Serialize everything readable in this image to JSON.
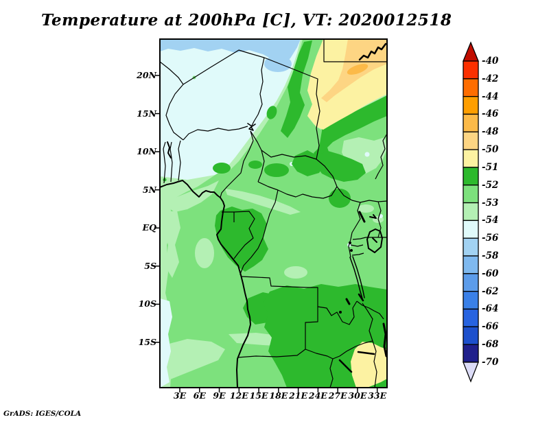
{
  "title": "Temperature at 200hPa [C], VT: 2020012518",
  "attribution": "GrADS: IGES/COLA",
  "map": {
    "lat_labels": [
      "20N",
      "15N",
      "10N",
      "5N",
      "EQ",
      "5S",
      "10S",
      "15S"
    ],
    "lon_labels": [
      "3E",
      "6E",
      "9E",
      "12E",
      "15E",
      "18E",
      "21E",
      "24E",
      "27E",
      "30E",
      "33E"
    ]
  },
  "colorbar": {
    "labels": [
      "-40",
      "-42",
      "-44",
      "-46",
      "-48",
      "-50",
      "-51",
      "-52",
      "-53",
      "-54",
      "-56",
      "-58",
      "-60",
      "-62",
      "-64",
      "-66",
      "-68",
      "-70"
    ],
    "segment_colors": [
      "#fb3000",
      "#fe6d00",
      "#fe9e00",
      "#fcba48",
      "#fdd583",
      "#fcf2a2",
      "#2db92d",
      "#7de17d",
      "#b4f0b4",
      "#e0fafa",
      "#a2d2f2",
      "#7fb9ef",
      "#5c9cea",
      "#3a80e8",
      "#2763e0",
      "#1d50cc",
      "#20208c"
    ],
    "up_arrow_color": "#c00d00",
    "down_arrow_color": "#dcdcf7"
  },
  "palette": {
    "cyan_pale": "#e0fafa",
    "blue_light": "#a2d2f2",
    "green_pale": "#b4f0b4",
    "green_light": "#7de17d",
    "green_mid": "#2db92d",
    "yellow_pale": "#fcf2a2",
    "amber_light": "#fdd583",
    "amber": "#fcba48",
    "black": "#000000"
  },
  "chart_data": {
    "type": "heatmap",
    "title": "Temperature at 200hPa [C], VT: 2020012518",
    "x_tick_labels": [
      "3E",
      "6E",
      "9E",
      "12E",
      "15E",
      "18E",
      "21E",
      "24E",
      "27E",
      "30E",
      "33E"
    ],
    "y_tick_labels": [
      "20N",
      "15N",
      "10N",
      "5N",
      "EQ",
      "5S",
      "10S",
      "15S"
    ],
    "legend_levels": [
      -40,
      -42,
      -44,
      -46,
      -48,
      -50,
      -51,
      -52,
      -53,
      -54,
      -56,
      -58,
      -60,
      -62,
      -64,
      -66,
      -68,
      -70
    ],
    "legend_colors": [
      "#fb3000",
      "#fe6d00",
      "#fe9e00",
      "#fcba48",
      "#fdd583",
      "#fcf2a2",
      "#2db92d",
      "#7de17d",
      "#b4f0b4",
      "#e0fafa",
      "#a2d2f2",
      "#7fb9ef",
      "#5c9cea",
      "#3a80e8",
      "#2763e0",
      "#1d50cc",
      "#20208c"
    ],
    "legend_position": "right",
    "notes": "Filled temperature contours over central Africa; coldest (blues) across the north, warm anomaly band (yellow/orange, -50 to -44) in the northeast, greens (-51 to -54) across equatorial and southern Africa, small warm patch (-50/-51) near southeast"
  }
}
